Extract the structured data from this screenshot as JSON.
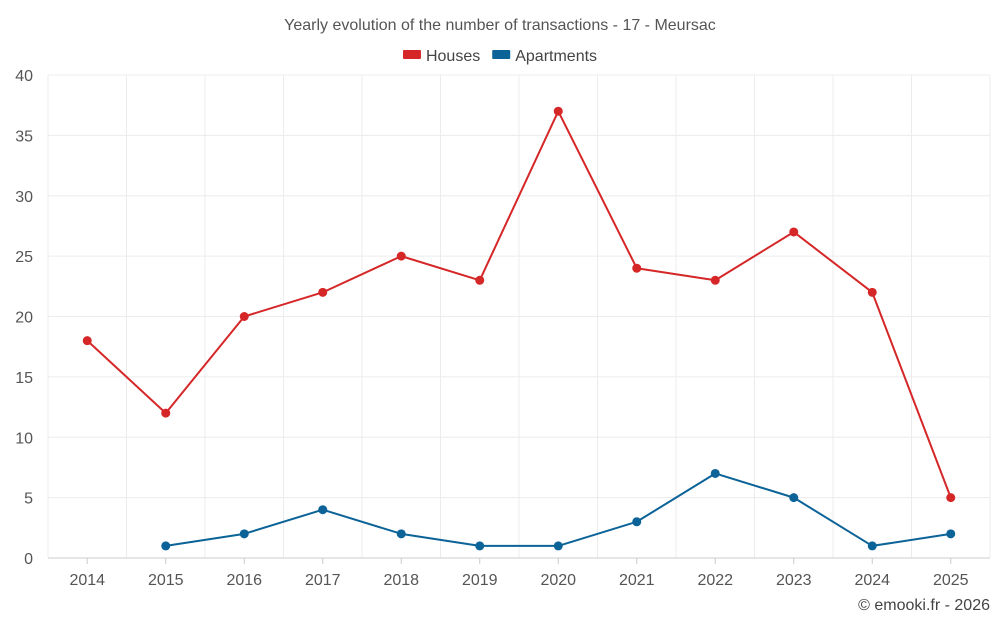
{
  "chart_data": {
    "type": "line",
    "title": "Yearly evolution of the number of transactions - 17 - Meursac",
    "xlabel": "",
    "ylabel": "",
    "ylim": [
      0,
      40
    ],
    "yticks": [
      0,
      5,
      10,
      15,
      20,
      25,
      30,
      35,
      40
    ],
    "categories": [
      "2014",
      "2015",
      "2016",
      "2017",
      "2018",
      "2019",
      "2020",
      "2021",
      "2022",
      "2023",
      "2024",
      "2025"
    ],
    "legend_position": "top-center",
    "grid": true,
    "series": [
      {
        "name": "Houses",
        "color": "#d62728",
        "values": [
          18,
          12,
          20,
          22,
          25,
          23,
          37,
          24,
          23,
          27,
          22,
          5
        ]
      },
      {
        "name": "Apartments",
        "color": "#0b6398",
        "values": [
          null,
          1,
          2,
          4,
          2,
          1,
          1,
          3,
          7,
          5,
          1,
          2
        ]
      }
    ]
  },
  "credit": "© emooki.fr - 2026"
}
